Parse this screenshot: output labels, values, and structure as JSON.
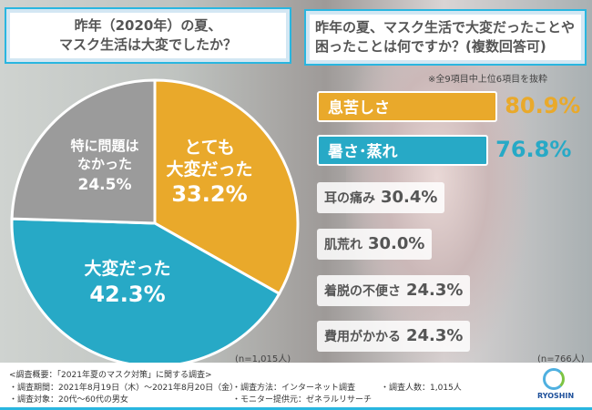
{
  "q1": {
    "line1": "昨年（2020年）の夏、",
    "line2": "マスク生活は大変でしたか？"
  },
  "q2": {
    "line1": "昨年の夏、マスク生活で大変だったことや",
    "line2": "困ったことは何ですか？(複数回答可)"
  },
  "note": "※全9項目中上位6項目を抜粋",
  "chart_data": [
    {
      "type": "pie",
      "slices": [
        {
          "label": "とても大変だった",
          "value": 33.2,
          "color": "#e9a92b"
        },
        {
          "label": "大変だった",
          "value": 42.3,
          "color": "#27a9c6"
        },
        {
          "label": "特に問題はなかった",
          "value": 24.5,
          "color": "#9b9b9b"
        }
      ],
      "labels": {
        "s0": [
          "とても",
          "大変だった",
          "33.2%"
        ],
        "s1": [
          "大変だった",
          "42.3%"
        ],
        "s2": [
          "特に問題は",
          "なかった",
          "24.5%"
        ]
      },
      "n": "(n=1,015人)"
    },
    {
      "type": "bar",
      "categories": [
        "息苦しさ",
        "暑さ･蒸れ",
        "耳の痛み",
        "肌荒れ",
        "着脱の不便さ",
        "費用がかかる"
      ],
      "values": [
        80.9,
        76.8,
        30.4,
        30.0,
        24.3,
        24.3
      ],
      "value_labels": [
        "80.9%",
        "76.8%",
        "30.4%",
        "30.0%",
        "24.3%",
        "24.3%"
      ],
      "colors": [
        "#e9a92b",
        "#27a9c6",
        "#ffffff",
        "#ffffff",
        "#ffffff",
        "#ffffff"
      ],
      "n": "(n=766人)"
    }
  ],
  "footer": {
    "title": "<調査概要：「2021年夏のマスク対策」に関する調査>",
    "period": "・調査期間：2021年8月19日（木）～2021年8月20日（金）",
    "target": "・調査対象：20代～60代の男女",
    "method": "・調査方法：インターネット調査",
    "monitor": "・モニター提供元：ゼネラルリサーチ",
    "count": "・調査人数：1,015人",
    "logo": "RYOSHIN"
  }
}
